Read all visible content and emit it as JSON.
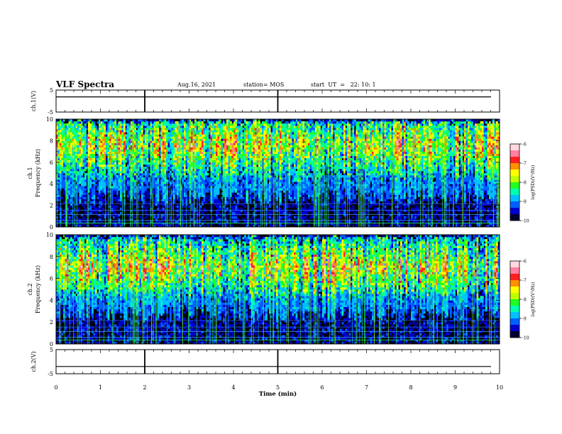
{
  "header": {
    "title": "VLF Spectra",
    "date": "Aug.16, 2021",
    "station": "station= MOS",
    "start": "start  UT  =   22: 10: 1"
  },
  "colors": {
    "background": "#ffffff",
    "axis": "#000000",
    "spectrogram_floor": "#000010",
    "colormap": [
      "#000030",
      "#0000d0",
      "#0060ff",
      "#00c0ff",
      "#00ffb0",
      "#20ff20",
      "#c0ff00",
      "#ffff00",
      "#ff9000",
      "#ff2020",
      "#ff80a0",
      "#ffd8e0"
    ]
  },
  "chart_data": [
    {
      "type": "line",
      "panel": "ch1-waveform",
      "ylabel": "ch.1(V)",
      "ylim": [
        -5,
        5
      ],
      "yticks": [
        "5",
        "-5"
      ],
      "xlim": [
        0,
        10
      ],
      "series": [
        {
          "values_description_free": true,
          "y": [
            1.9,
            1.9
          ]
        }
      ],
      "markers_min": [
        2.0,
        5.0
      ]
    },
    {
      "type": "heatmap",
      "panel": "ch1-spectrogram",
      "ylabel": "ch.1\nFrequency (kHz)",
      "ylabel_line1": "ch.1",
      "ylabel_line2": "Frequency (kHz)",
      "ylim": [
        0,
        10
      ],
      "yticks": [
        "0",
        "2",
        "4",
        "6",
        "8",
        "10"
      ],
      "xlim": [
        0,
        10
      ],
      "cbar_label": "log(PSD)(V²/Hz)",
      "cbar_range": [
        -10,
        -6
      ],
      "cbar_ticks": [
        "-6",
        "-7",
        "-8",
        "-9",
        "-10"
      ],
      "band_khz": [
        4.0,
        9.6
      ],
      "peak_khz": 7.6
    },
    {
      "type": "heatmap",
      "panel": "ch2-spectrogram",
      "ylabel_line1": "ch.2",
      "ylabel_line2": "Frequency (kHz)",
      "ylim": [
        0,
        10
      ],
      "yticks": [
        "0",
        "2",
        "4",
        "6",
        "8",
        "10"
      ],
      "xlim": [
        0,
        10
      ],
      "cbar_label": "log(PSD)(V²/Hz)",
      "cbar_range": [
        -10,
        -6
      ],
      "cbar_ticks": [
        "-6",
        "-7",
        "-8",
        "-9",
        "-10"
      ],
      "band_khz": [
        4.0,
        9.6
      ],
      "peak_khz": 7.0
    },
    {
      "type": "line",
      "panel": "ch2-waveform",
      "ylabel": "ch.2(V)",
      "ylim": [
        -5,
        5
      ],
      "yticks": [
        "5",
        "-5"
      ],
      "xlim": [
        0,
        10
      ],
      "series": [
        {
          "y": [
            -2.0,
            -2.0
          ]
        }
      ],
      "xlabel": "Time  (min)",
      "xticks": [
        "0",
        "1",
        "2",
        "3",
        "4",
        "5",
        "6",
        "7",
        "8",
        "9",
        "10"
      ],
      "markers_min": [
        2.0,
        5.0
      ]
    }
  ]
}
